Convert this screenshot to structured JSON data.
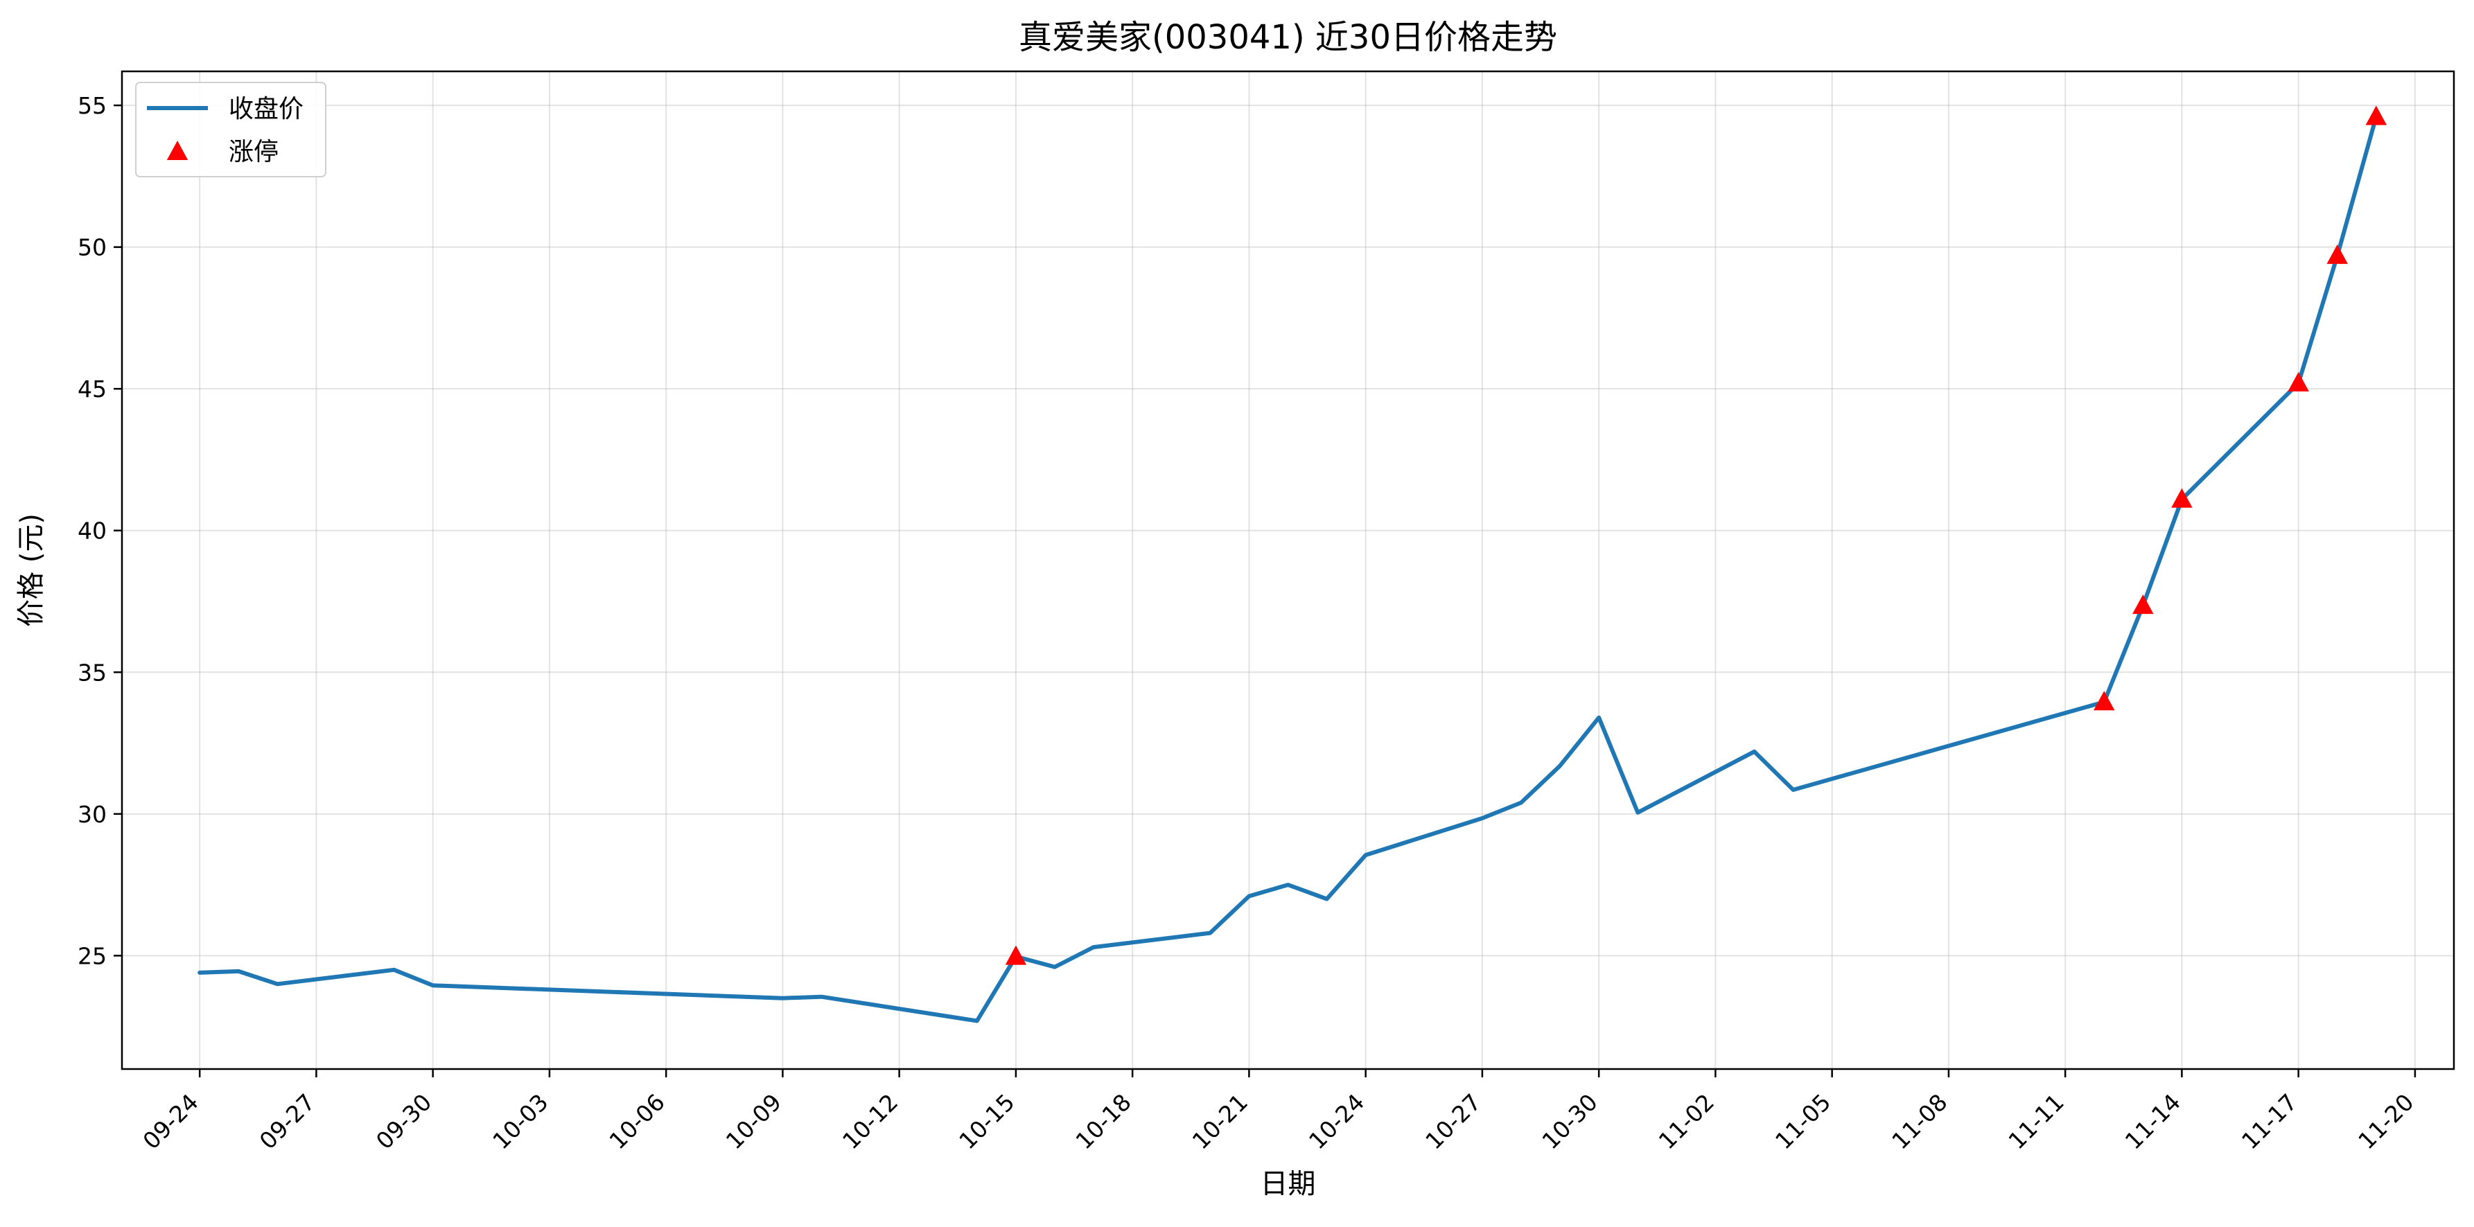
{
  "chart_data": {
    "type": "line",
    "title": "真爱美家(003041) 近30日价格走势",
    "xlabel": "日期",
    "ylabel": "价格 (元)",
    "x_axis_type": "date",
    "year": 2024,
    "x_ticks": [
      "09-24",
      "09-27",
      "09-30",
      "10-03",
      "10-06",
      "10-09",
      "10-12",
      "10-15",
      "10-18",
      "10-21",
      "10-24",
      "10-27",
      "10-30",
      "11-02",
      "11-05",
      "11-08",
      "11-11",
      "11-14",
      "11-17",
      "11-20"
    ],
    "xlim": [
      "09-22",
      "11-21"
    ],
    "y_ticks": [
      25,
      30,
      35,
      40,
      45,
      50,
      55
    ],
    "ylim": [
      21,
      56.2
    ],
    "grid": true,
    "legend_position": "top-left",
    "series": [
      {
        "name": "收盘价",
        "kind": "line",
        "color": "#1f77b4",
        "x": [
          "09-24",
          "09-25",
          "09-26",
          "09-29",
          "09-30",
          "10-09",
          "10-10",
          "10-14",
          "10-15",
          "10-16",
          "10-17",
          "10-20",
          "10-21",
          "10-22",
          "10-23",
          "10-24",
          "10-27",
          "10-28",
          "10-29",
          "10-30",
          "10-31",
          "11-03",
          "11-04",
          "11-12",
          "11-13",
          "11-14",
          "11-17",
          "11-18",
          "11-19"
        ],
        "values": [
          24.4,
          24.45,
          24.0,
          24.5,
          23.95,
          23.5,
          23.55,
          22.7,
          24.97,
          24.6,
          25.3,
          25.8,
          27.1,
          27.5,
          27.0,
          28.55,
          29.85,
          30.4,
          31.7,
          33.4,
          30.05,
          32.2,
          30.85,
          33.95,
          37.35,
          41.1,
          45.2,
          49.7,
          54.6
        ]
      },
      {
        "name": "涨停",
        "kind": "scatter",
        "marker": "triangle",
        "color": "#ff0000",
        "x": [
          "10-15",
          "11-12",
          "11-13",
          "11-14",
          "11-17",
          "11-18",
          "11-19"
        ],
        "values": [
          24.97,
          33.95,
          37.35,
          41.1,
          45.2,
          49.7,
          54.6
        ]
      }
    ]
  }
}
